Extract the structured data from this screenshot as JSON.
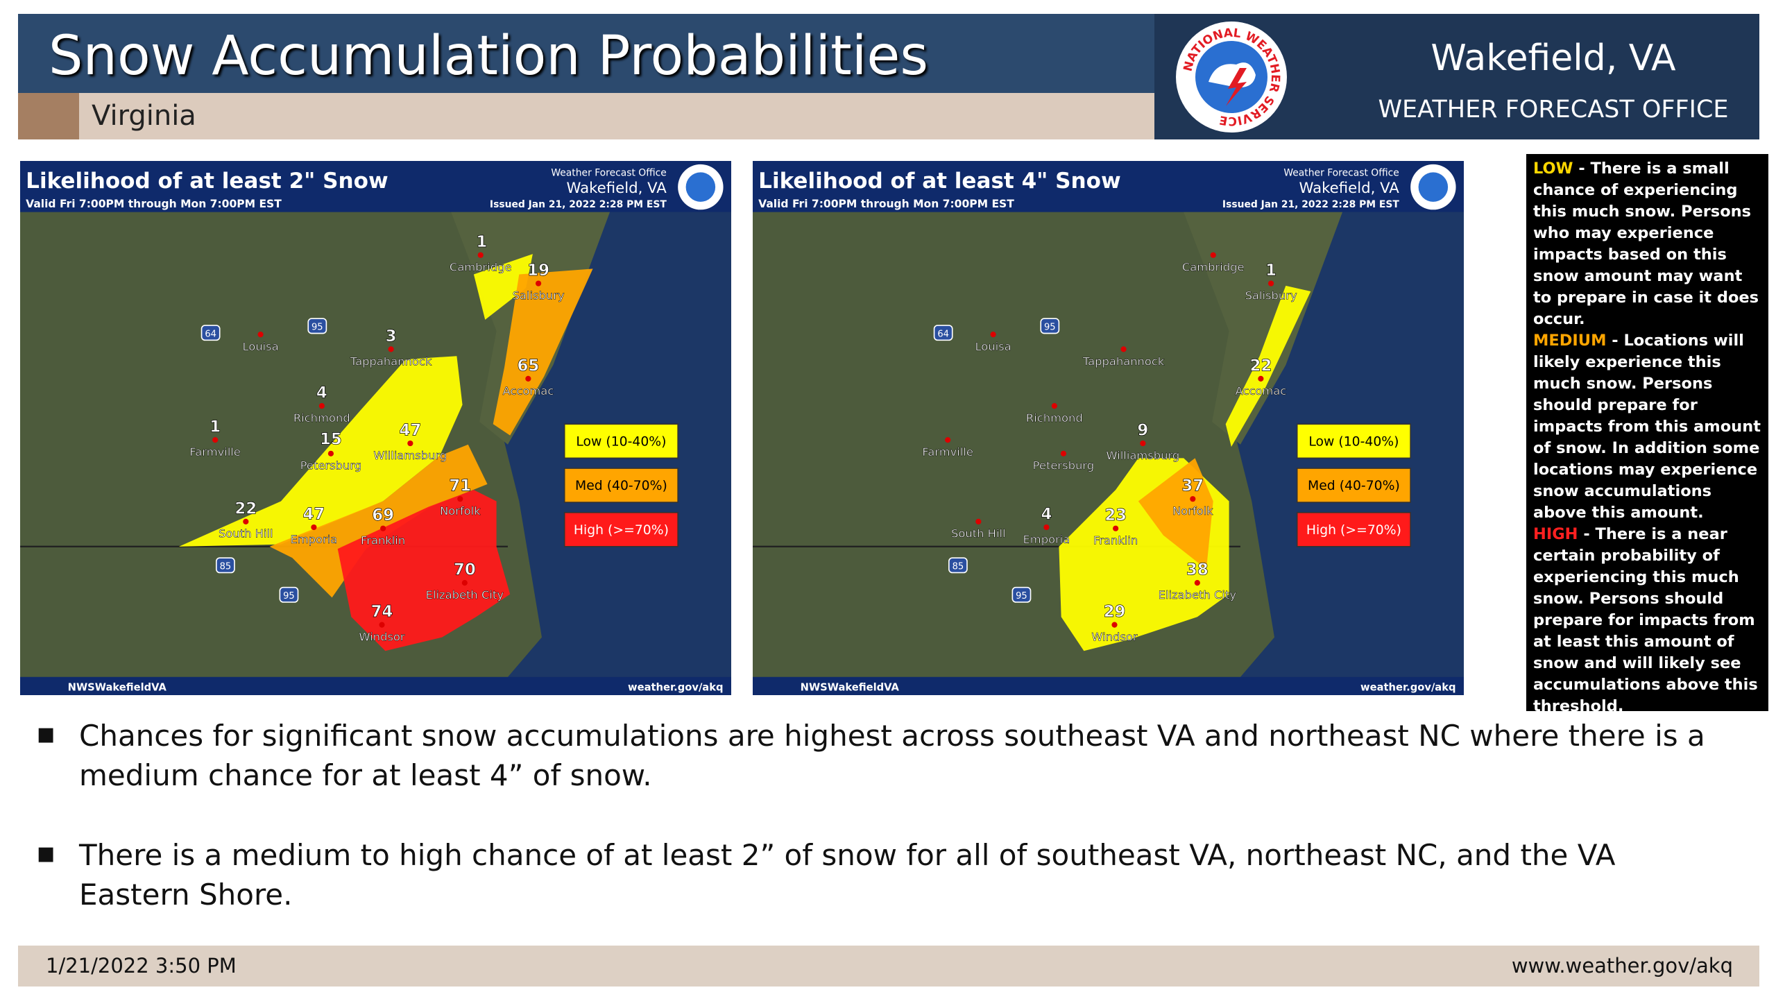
{
  "header": {
    "title": "Snow Accumulation Probabilities",
    "subtitle": "Virginia",
    "office": "Wakefield, VA",
    "office_type": "WEATHER FORECAST OFFICE",
    "logo_text": "NATIONAL WEATHER SERVICE"
  },
  "maps": [
    {
      "title": "Likelihood of at least 2\" Snow",
      "valid": "Valid Fri 7:00PM through Mon 7:00PM EST",
      "office_line1": "Weather Forecast Office",
      "office_line2": "Wakefield, VA",
      "issued": "Issued Jan 21, 2022 2:28 PM EST",
      "legend": [
        "Low (10-40%)",
        "Med (40-70%)",
        "High (>=70%)"
      ],
      "social": "NWSWakefieldVA",
      "url": "weather.gov/akq",
      "shields": [
        "64",
        "95",
        "85",
        "95"
      ],
      "places": [
        {
          "name": "Cambridge",
          "value": 1
        },
        {
          "name": "Salisbury",
          "value": 19
        },
        {
          "name": "Louisa",
          "value": null
        },
        {
          "name": "Tappahannock",
          "value": 3
        },
        {
          "name": "Accomac",
          "value": 65
        },
        {
          "name": "Richmond",
          "value": 4
        },
        {
          "name": "Farmville",
          "value": 1
        },
        {
          "name": "Petersburg",
          "value": 15
        },
        {
          "name": "Williamsburg",
          "value": 47
        },
        {
          "name": "Norfolk",
          "value": 71
        },
        {
          "name": "South Hill",
          "value": 22
        },
        {
          "name": "Emporia",
          "value": 47
        },
        {
          "name": "Franklin",
          "value": 69
        },
        {
          "name": "Elizabeth City",
          "value": 70
        },
        {
          "name": "Windsor",
          "value": 74
        }
      ]
    },
    {
      "title": "Likelihood of at least 4\" Snow",
      "valid": "Valid Fri 7:00PM through Mon 7:00PM EST",
      "office_line1": "Weather Forecast Office",
      "office_line2": "Wakefield, VA",
      "issued": "Issued Jan 21, 2022 2:28 PM EST",
      "legend": [
        "Low (10-40%)",
        "Med (40-70%)",
        "High (>=70%)"
      ],
      "social": "NWSWakefieldVA",
      "url": "weather.gov/akq",
      "shields": [
        "64",
        "95",
        "85",
        "95"
      ],
      "places": [
        {
          "name": "Cambridge",
          "value": null
        },
        {
          "name": "Salisbury",
          "value": 1
        },
        {
          "name": "Louisa",
          "value": null
        },
        {
          "name": "Tappahannock",
          "value": null
        },
        {
          "name": "Accomac",
          "value": 22
        },
        {
          "name": "Richmond",
          "value": null
        },
        {
          "name": "Farmville",
          "value": null
        },
        {
          "name": "Petersburg",
          "value": null
        },
        {
          "name": "Williamsburg",
          "value": 9
        },
        {
          "name": "Norfolk",
          "value": 37
        },
        {
          "name": "South Hill",
          "value": null
        },
        {
          "name": "Emporia",
          "value": 4
        },
        {
          "name": "Franklin",
          "value": 23
        },
        {
          "name": "Elizabeth City",
          "value": 38
        },
        {
          "name": "Windsor",
          "value": 29
        }
      ]
    }
  ],
  "sidebar": [
    {
      "label": "LOW",
      "text": " -  There is a small chance of experiencing this much snow. Persons who may experience impacts based on this snow amount may want to prepare in case it does occur."
    },
    {
      "label": "MEDIUM",
      "text": " -  Locations will likely experience this much snow. Persons should prepare for impacts from this amount of snow. In addition some locations may experience snow accumulations above this amount."
    },
    {
      "label": "HIGH",
      "text": " - There is a near certain probability of experiencing this much snow. Persons should prepare for impacts from at least this amount of snow and will likely see accumulations above this threshold."
    }
  ],
  "bullets": [
    "Chances for significant snow accumulations are highest across southeast VA and northeast NC where there is a medium chance for at least 4” of snow.",
    "There is a medium to high chance of  at least 2” of snow for all of southeast VA, northeast NC, and the VA Eastern Shore."
  ],
  "footer": {
    "date": "1/21/2022 3:50 PM",
    "url": "www.weather.gov/akq"
  }
}
